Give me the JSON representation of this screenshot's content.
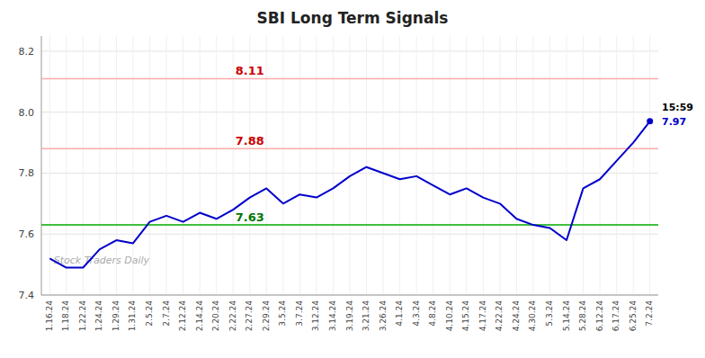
{
  "chart_data": {
    "type": "line",
    "title": "SBI Long Term Signals",
    "categories": [
      "1.16.24",
      "1.18.24",
      "1.22.24",
      "1.24.24",
      "1.29.24",
      "1.31.24",
      "2.5.24",
      "2.7.24",
      "2.12.24",
      "2.14.24",
      "2.20.24",
      "2.22.24",
      "2.27.24",
      "2.29.24",
      "3.5.24",
      "3.7.24",
      "3.12.24",
      "3.14.24",
      "3.19.24",
      "3.21.24",
      "3.26.24",
      "4.1.24",
      "4.3.24",
      "4.8.24",
      "4.10.24",
      "4.15.24",
      "4.17.24",
      "4.22.24",
      "4.24.24",
      "4.30.24",
      "5.3.24",
      "5.14.24",
      "5.28.24",
      "6.12.24",
      "6.17.24",
      "6.25.24",
      "7.2.24"
    ],
    "values": [
      7.52,
      7.49,
      7.49,
      7.55,
      7.58,
      7.57,
      7.64,
      7.66,
      7.64,
      7.67,
      7.65,
      7.68,
      7.72,
      7.75,
      7.7,
      7.73,
      7.72,
      7.75,
      7.79,
      7.82,
      7.8,
      7.78,
      7.79,
      7.76,
      7.73,
      7.75,
      7.72,
      7.7,
      7.65,
      7.63,
      7.62,
      7.58,
      7.75,
      7.78,
      7.84,
      7.9,
      7.97
    ],
    "color": "#0000cc",
    "ylim": [
      7.4,
      8.25
    ],
    "yticks": [
      7.4,
      7.6,
      7.8,
      {
        "value": 8.0,
        "label": "8.0"
      },
      8.2
    ],
    "grid": true,
    "hlines": [
      {
        "value": 8.11,
        "label": "8.11",
        "color": "#ffaaaa",
        "label_color": "#cc0000"
      },
      {
        "value": 7.88,
        "label": "7.88",
        "color": "#ffaaaa",
        "label_color": "#cc0000"
      },
      {
        "value": 7.63,
        "label": "7.63",
        "color": "#00aa00",
        "label_color": "#007700"
      }
    ],
    "annotations": [
      {
        "text": "15:59",
        "color": "#000000"
      },
      {
        "text": "7.97",
        "color": "#0000cc"
      }
    ],
    "watermark": "Stock Traders Daily"
  }
}
